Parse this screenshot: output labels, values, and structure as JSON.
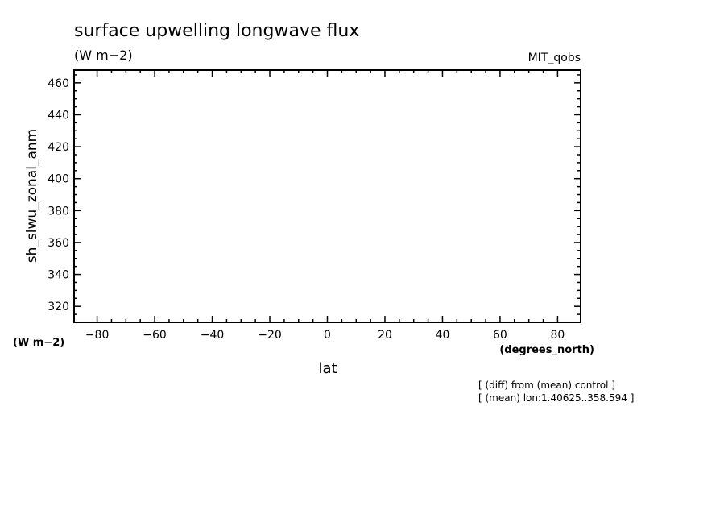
{
  "chart_data": {
    "type": "line",
    "title": "surface upwelling longwave flux",
    "subtitle": "(W m−2)",
    "dataset": "MIT_qobs",
    "xlabel": "lat",
    "xunits": "(degrees_north)",
    "ylabel": "sh_slwu_zonal_anm",
    "yunits": "(W m−2)",
    "xlim": [
      -88,
      88
    ],
    "ylim": [
      310,
      468
    ],
    "xticks": [
      -80,
      -60,
      -40,
      -20,
      0,
      20,
      40,
      60,
      80
    ],
    "xtick_labels": [
      "−80",
      "−60",
      "−40",
      "−20",
      "0",
      "20",
      "40",
      "60",
      "80"
    ],
    "yticks": [
      320,
      340,
      360,
      380,
      400,
      420,
      440,
      460
    ],
    "ytick_labels": [
      "320",
      "340",
      "360",
      "380",
      "400",
      "420",
      "440",
      "460"
    ],
    "series": [],
    "grid": false,
    "notes": [
      "[ (diff) from (mean) control ]",
      "[ (mean) lon:1.40625..358.594 ]"
    ]
  }
}
